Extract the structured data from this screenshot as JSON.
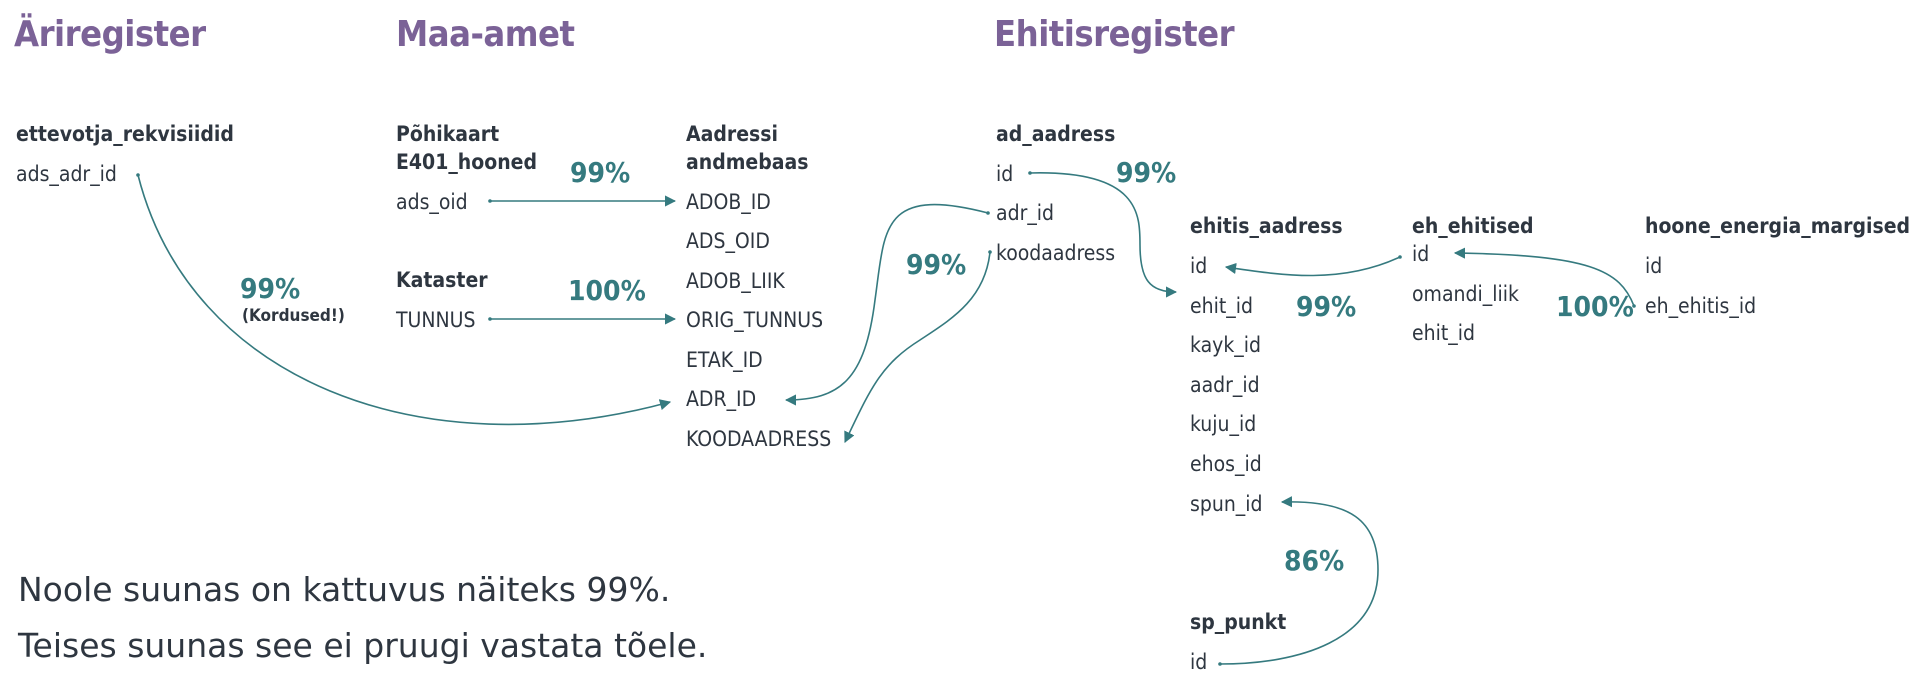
{
  "sections": {
    "ariregister": "Äriregister",
    "maa_amet": "Maa-amet",
    "ehitisregister": "Ehitisregister"
  },
  "tables": {
    "ettevotja": {
      "name": "ettevotja_rekvisiidid",
      "fields": [
        "ads_adr_id"
      ]
    },
    "pohikaart": {
      "name_line1": "Põhikaart",
      "name_line2": "E401_hooned",
      "fields": [
        "ads_oid"
      ]
    },
    "kataster": {
      "name": "Kataster",
      "fields": [
        "TUNNUS"
      ]
    },
    "aadressi": {
      "name_line1": "Aadressi",
      "name_line2": "andmebaas",
      "fields": [
        "ADOB_ID",
        "ADS_OID",
        "ADOB_LIIK",
        "ORIG_TUNNUS",
        "ETAK_ID",
        "ADR_ID",
        "KOODAADRESS"
      ]
    },
    "ad_aadress": {
      "name": "ad_aadress",
      "fields": [
        "id",
        "adr_id",
        "koodaadress"
      ]
    },
    "ehitis_aadress": {
      "name": "ehitis_aadress",
      "fields": [
        "id",
        "ehit_id",
        "kayk_id",
        "aadr_id",
        "kuju_id",
        "ehos_id",
        "spun_id"
      ]
    },
    "eh_ehitised": {
      "name": "eh_ehitised",
      "fields": [
        "id",
        "omandi_liik",
        "ehit_id"
      ]
    },
    "hoone_energia": {
      "name": "hoone_energia_margised",
      "fields": [
        "id",
        "eh_ehitis_id"
      ]
    },
    "sp_punkt": {
      "name": "sp_punkt",
      "fields": [
        "id"
      ]
    }
  },
  "percentages": {
    "p_ettevotja": "99%",
    "p_ettevotja_note": "(Kordused!)",
    "p_pohikaart": "99%",
    "p_kataster": "100%",
    "p_adr": "99%",
    "p_ad_id": "99%",
    "p_ehitis": "99%",
    "p_hoone": "100%",
    "p_sp": "86%"
  },
  "caption": {
    "line1": "Noole suunas on kattuvus näiteks 99%.",
    "line2": "Teises suunas see ei pruugi vastata tõele."
  },
  "colors": {
    "title": "#7b6297",
    "arrow": "#357a7f",
    "text": "#2e3640"
  }
}
